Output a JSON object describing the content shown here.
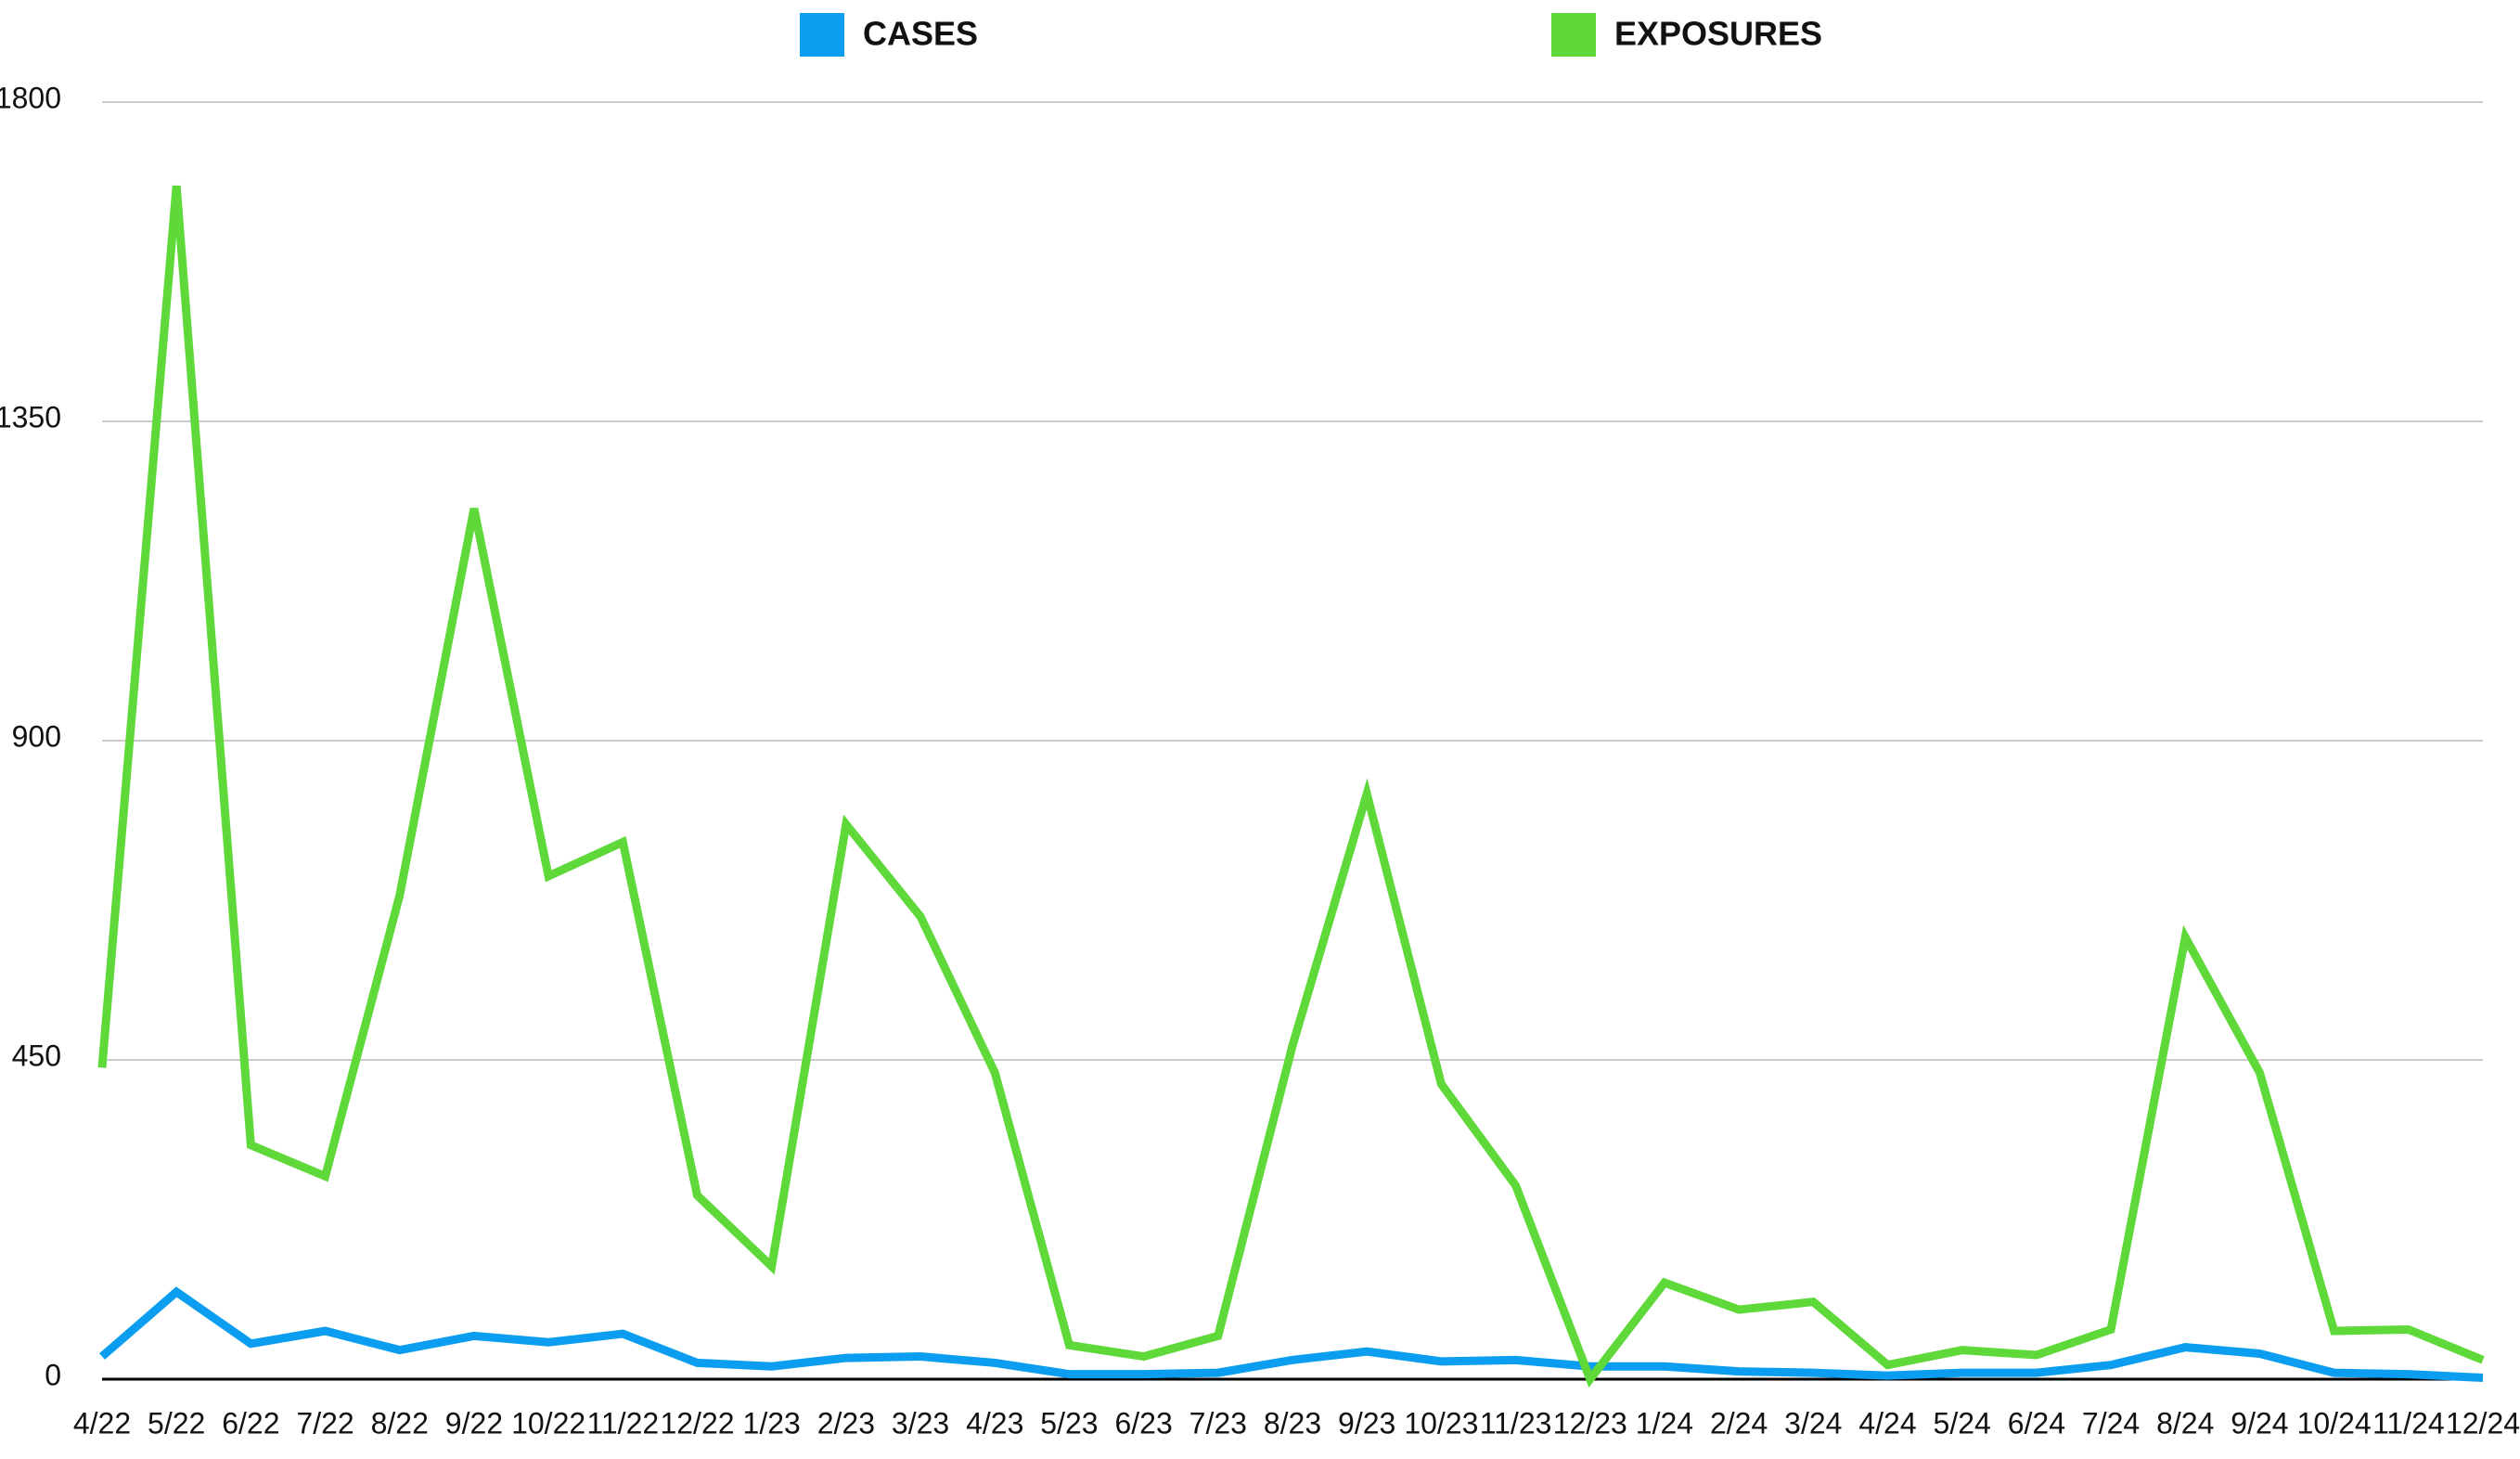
{
  "chart_data": {
    "type": "line",
    "categories": [
      "4/22",
      "5/22",
      "6/22",
      "7/22",
      "8/22",
      "9/22",
      "10/22",
      "11/22",
      "12/22",
      "1/23",
      "2/23",
      "3/23",
      "4/23",
      "5/23",
      "6/23",
      "7/23",
      "8/23",
      "9/23",
      "10/23",
      "11/23",
      "12/23",
      "1/24",
      "2/24",
      "3/24",
      "4/24",
      "5/24",
      "6/24",
      "7/24",
      "8/24",
      "9/24",
      "10/24",
      "11/24",
      "12/24"
    ],
    "series": [
      {
        "name": "CASES",
        "color": "#0a9df0",
        "values": [
          32,
          123,
          50,
          68,
          41,
          61,
          52,
          64,
          23,
          18,
          30,
          32,
          23,
          7,
          7,
          9,
          27,
          39,
          25,
          27,
          18,
          18,
          11,
          9,
          5,
          9,
          9,
          20,
          45,
          36,
          9,
          7,
          2
        ]
      },
      {
        "name": "EXPOSURES",
        "color": "#5fd93a",
        "values": [
          439,
          1682,
          330,
          286,
          682,
          1227,
          709,
          757,
          259,
          159,
          782,
          652,
          432,
          48,
          32,
          61,
          470,
          825,
          416,
          273,
          0,
          136,
          98,
          109,
          20,
          41,
          34,
          70,
          623,
          432,
          68,
          70,
          27
        ]
      }
    ],
    "ylim": [
      0,
      1800
    ],
    "yticks": [
      0,
      450,
      900,
      1350,
      1800
    ],
    "grid": true
  }
}
